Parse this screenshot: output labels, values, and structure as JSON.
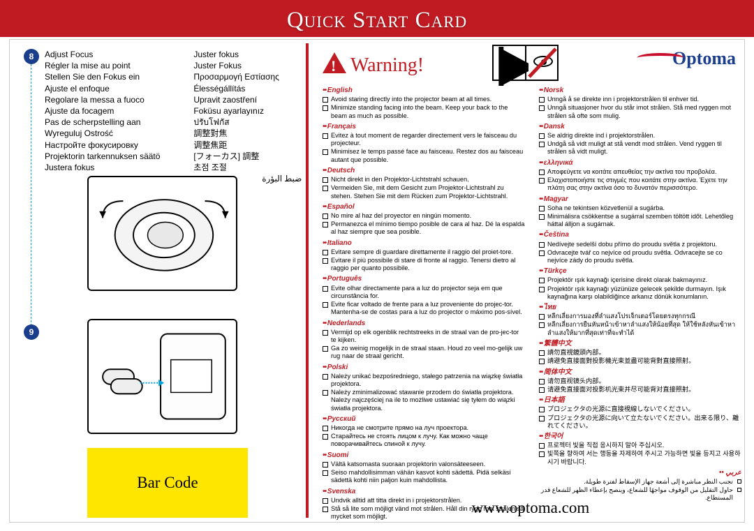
{
  "banner_title": "Quick Start Card",
  "step8_num": "8",
  "step9_num": "9",
  "adjust_focus": {
    "col1": [
      "Adjust Focus",
      "Régler la mise au point",
      "Stellen Sie den Fokus ein",
      "Ajuste el enfoque",
      "Regolare la messa a fuoco",
      "Ajuste da focagem",
      "Pas de scherpstelling aan",
      "Wyreguluj Ostrość",
      "Настройте фокусировку",
      "Projektorin tarkennuksen säätö",
      "Justera fokus"
    ],
    "col2": [
      "Juster fokus",
      "Juster Fokus",
      "Προσαρμογή Εστίασης",
      "Élességállítás",
      "Upravit zaostření",
      "Foküsu ayarlayınız",
      "ปรับโฟกัส",
      "調整對焦",
      "调整焦距",
      "[フォーカス] 調整",
      "초점 조절"
    ],
    "col2_ar": "ضبط البؤرة"
  },
  "barcode_label": "Bar Code",
  "warning_label": "Warning!",
  "logo_text": "Optoma",
  "url": "www.optoma.com",
  "langs_left": [
    {
      "h": "English",
      "items": [
        "Avoid staring directly into the projector beam at all times.",
        "Minimize standing facing into the beam. Keep your back to the beam as much as possible."
      ]
    },
    {
      "h": "Français",
      "items": [
        "Evitez à tout moment de regarder directement vers le faisceau du projecteur.",
        "Minimisez le temps passé face au faisceau. Restez dos au faisceau autant que possible."
      ]
    },
    {
      "h": "Deutsch",
      "items": [
        "Nicht direkt in den Projektor-Lichtstrahl schauen.",
        "Vermeiden Sie, mit dem Gesicht zum Projektor-Lichtstrahl zu stehen. Stehen Sie mit dem Rücken zum Projektor-Lichtstrahl."
      ]
    },
    {
      "h": "Español",
      "items": [
        "No mire al haz del proyector en ningún momento.",
        "Permanezca el mínimo tiempo posible de cara al haz. Dé la espalda al haz siempre que sea posible."
      ]
    },
    {
      "h": "Italiano",
      "items": [
        "Evitare sempre di guardare direttamente il raggio del proiet-tore.",
        "Evitare il più possibile di stare di fronte al raggio. Tenersi dietro al raggio per quanto possibile."
      ]
    },
    {
      "h": "Português",
      "items": [
        "Evite olhar directamente para a luz do projector seja em que circunstância for.",
        "Evite ficar voltado de frente para a luz proveniente do projec-tor. Mantenha-se de costas para a luz do projector o máximo pos-sível."
      ]
    },
    {
      "h": "Nederlands",
      "items": [
        "Vermijd op elk ogenblik rechtstreeks in de straal van de pro-jec-tor te kijken.",
        "Ga zo weinig mogelijk in de straal staan. Houd zo veel mo-gelijk uw rug naar de straal gericht."
      ]
    },
    {
      "h": "Polski",
      "items": [
        "Należy unikać bezpośredniego, stałego patrzenia na wiązkę światła projektora.",
        "Należy zminimalizować stawanie przodem do światła projektora. Należy najczęściej na ile to możliwe ustawiać się tyłem do wiązki światła projektora."
      ]
    },
    {
      "h": "Русский",
      "items": [
        "Никогда не смотрите прямо на луч проектора.",
        "Старайтесь не стоять лицом к лучу. Как можно чаще поворачивайтесь спиной к лучу."
      ]
    },
    {
      "h": "Suomi",
      "items": [
        "Vältä katsomasta suoraan projektorin valonsäteeseen.",
        "Seiso mahdollisimman vähän kasvot kohti sädettä. Pidä selkäsi sädettä kohti niin paljon kuin mahdollista."
      ]
    },
    {
      "h": "Svenska",
      "items": [
        "Undvik alltid att titta direkt in i projektorstrålen.",
        "Stå så lite som möjligt vänd mot strålen. Håll din rygg mot strålen så mycket som möjligt."
      ]
    }
  ],
  "langs_right": [
    {
      "h": "Norsk",
      "items": [
        "Unngå å se direkte inn i projektorstrålen til enhver tid.",
        "Unngå situasjoner hvor du står imot strålen. Stå med ryggen mot strålen så ofte som mulig."
      ]
    },
    {
      "h": "Dansk",
      "items": [
        "Se aldrig direkte ind i projektorstrålen.",
        "Undgå så vidt muligt at stå vendt mod strålen. Vend ryggen til strålen så vidt muligt."
      ]
    },
    {
      "h": "ελληνικά",
      "items": [
        "Αποφεύγετε να κοιτάτε απευθείας την ακτίνα του προβολέα.",
        "Ελαχιστοποιήστε τις στιγμές που κοιτάτε στην ακτίνα. Έχετε την πλάτη σας στην ακτίνα όσο το δυνατόν περισσότερο."
      ]
    },
    {
      "h": "Magyar",
      "items": [
        "Soha ne tekintsen közvetlenül a sugárba.",
        "Minimálisra csökkentse a sugárral szemben töltött időt. Lehetőleg háttal álljon a sugárnak."
      ]
    },
    {
      "h": "Čeština",
      "items": [
        "Nedívejte sedelší dobu přímo do proudu světla z projektoru.",
        "Odvracejte tvář co nejvíce od proudu světla. Odvracejte se co nejvíce zády do proudu světla."
      ]
    },
    {
      "h": "Türkçe",
      "items": [
        "Projektör ışık kaynağı içerisine direkt olarak bakmayınız.",
        "Projektör ışık kaynağı yüzünüze gelecek şekilde durmayın. Işık kaynağına karşı olabildiğince arkanız dönük konumlanın."
      ]
    },
    {
      "h": "ไทย",
      "items": [
        "หลีกเลี่ยงการมองที่ลำแสงโปรเจ็กเตอร์โดยตรงทุกกรณี",
        "หลีกเลี่ยงการยืนหันหน้าเข้าหาลำแสงให้น้อยที่สุด ให้ใช้หลังหันเข้าหาลำแสงให้มากที่สุดเท่าที่จะทำได้"
      ]
    },
    {
      "h": "繁體中文",
      "items": [
        "請勿直視鏡頭內部。",
        "請避免直接面對投影機光束並盡可能背對直接照射。"
      ]
    },
    {
      "h": "简体中文",
      "items": [
        "请勿直视镜头内部。",
        "请避免直接面对投影机光束并尽可能背对直接照射。"
      ]
    },
    {
      "h": "日本語",
      "items": [
        "プロジェクタの光源に直接視線しないでください。",
        "プロジェクタの光源に向いて立たないでください。出来る限り、離れてください。"
      ]
    },
    {
      "h": "한국어",
      "items": [
        "프로젝터 빛을 직접 응시하지 말아 주십시오.",
        "빛쪽을 향하여 서는 행동을 자제하여 주시고 가능하면 빛을 등지고 사용하시기 바랍니다."
      ]
    }
  ],
  "arabic": {
    "h": "عربي",
    "items": [
      "تجنب النظر مباشرة إلى أشعة جهاز الإسقاط لفترة طويلة.",
      "حاول التقليل من الوقوف مواجهًا للشعاع، وينصح بإعطاء الظهر للشعاع قدر المستطاع."
    ]
  }
}
